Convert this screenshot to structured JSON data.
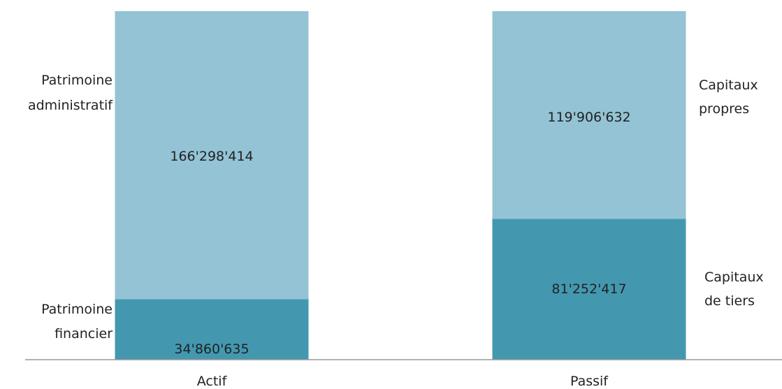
{
  "chart_data": {
    "type": "bar",
    "stacked": true,
    "categories": [
      "Actif",
      "Passif"
    ],
    "series": [
      {
        "name": "",
        "segment_names": [
          "Patrimoine financier",
          "Capitaux de tiers"
        ],
        "values": [
          34860635,
          81252417
        ],
        "value_labels": [
          "34'860'635",
          "81'252'417"
        ],
        "color": "#4398b0"
      },
      {
        "name": "",
        "segment_names": [
          "Patrimoine administratif",
          "Capitaux propres"
        ],
        "values": [
          166298414,
          119906632
        ],
        "value_labels": [
          "166'298'414",
          "119'906'632"
        ],
        "color": "#93c3d5"
      }
    ],
    "side_labels": {
      "actif_bottom": [
        "Patrimoine",
        "financier"
      ],
      "actif_top": [
        "Patrimoine",
        "administratif"
      ],
      "passif_top": [
        "Capitaux",
        "propres"
      ],
      "passif_bottom": [
        "Capitaux",
        "de tiers"
      ]
    },
    "ylim": [
      0,
      201159049
    ],
    "grid": false,
    "legend": "none",
    "axis_color": "#999999"
  }
}
